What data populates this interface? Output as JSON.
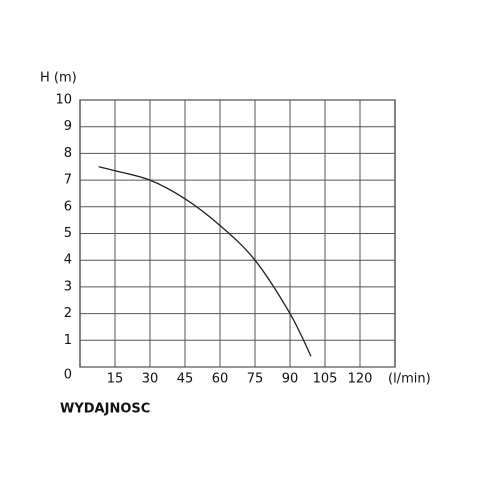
{
  "chart_data": {
    "type": "line",
    "y_label": "H (m)",
    "x_unit": "(l/min)",
    "x_title": "WYDAJNOSC",
    "x": [
      8,
      15,
      30,
      45,
      60,
      75,
      90,
      99
    ],
    "series": [
      {
        "color": "#222222",
        "values": [
          7.5,
          7.35,
          7.0,
          6.3,
          5.3,
          4.0,
          2.0,
          0.4
        ]
      }
    ],
    "xlim": [
      0,
      135
    ],
    "xticks": [
      15,
      30,
      45,
      60,
      75,
      90,
      105,
      120
    ],
    "ylim": [
      0,
      10
    ],
    "yticks": [
      0,
      1,
      2,
      3,
      4,
      5,
      6,
      7,
      8,
      9,
      10
    ],
    "grid": true
  }
}
